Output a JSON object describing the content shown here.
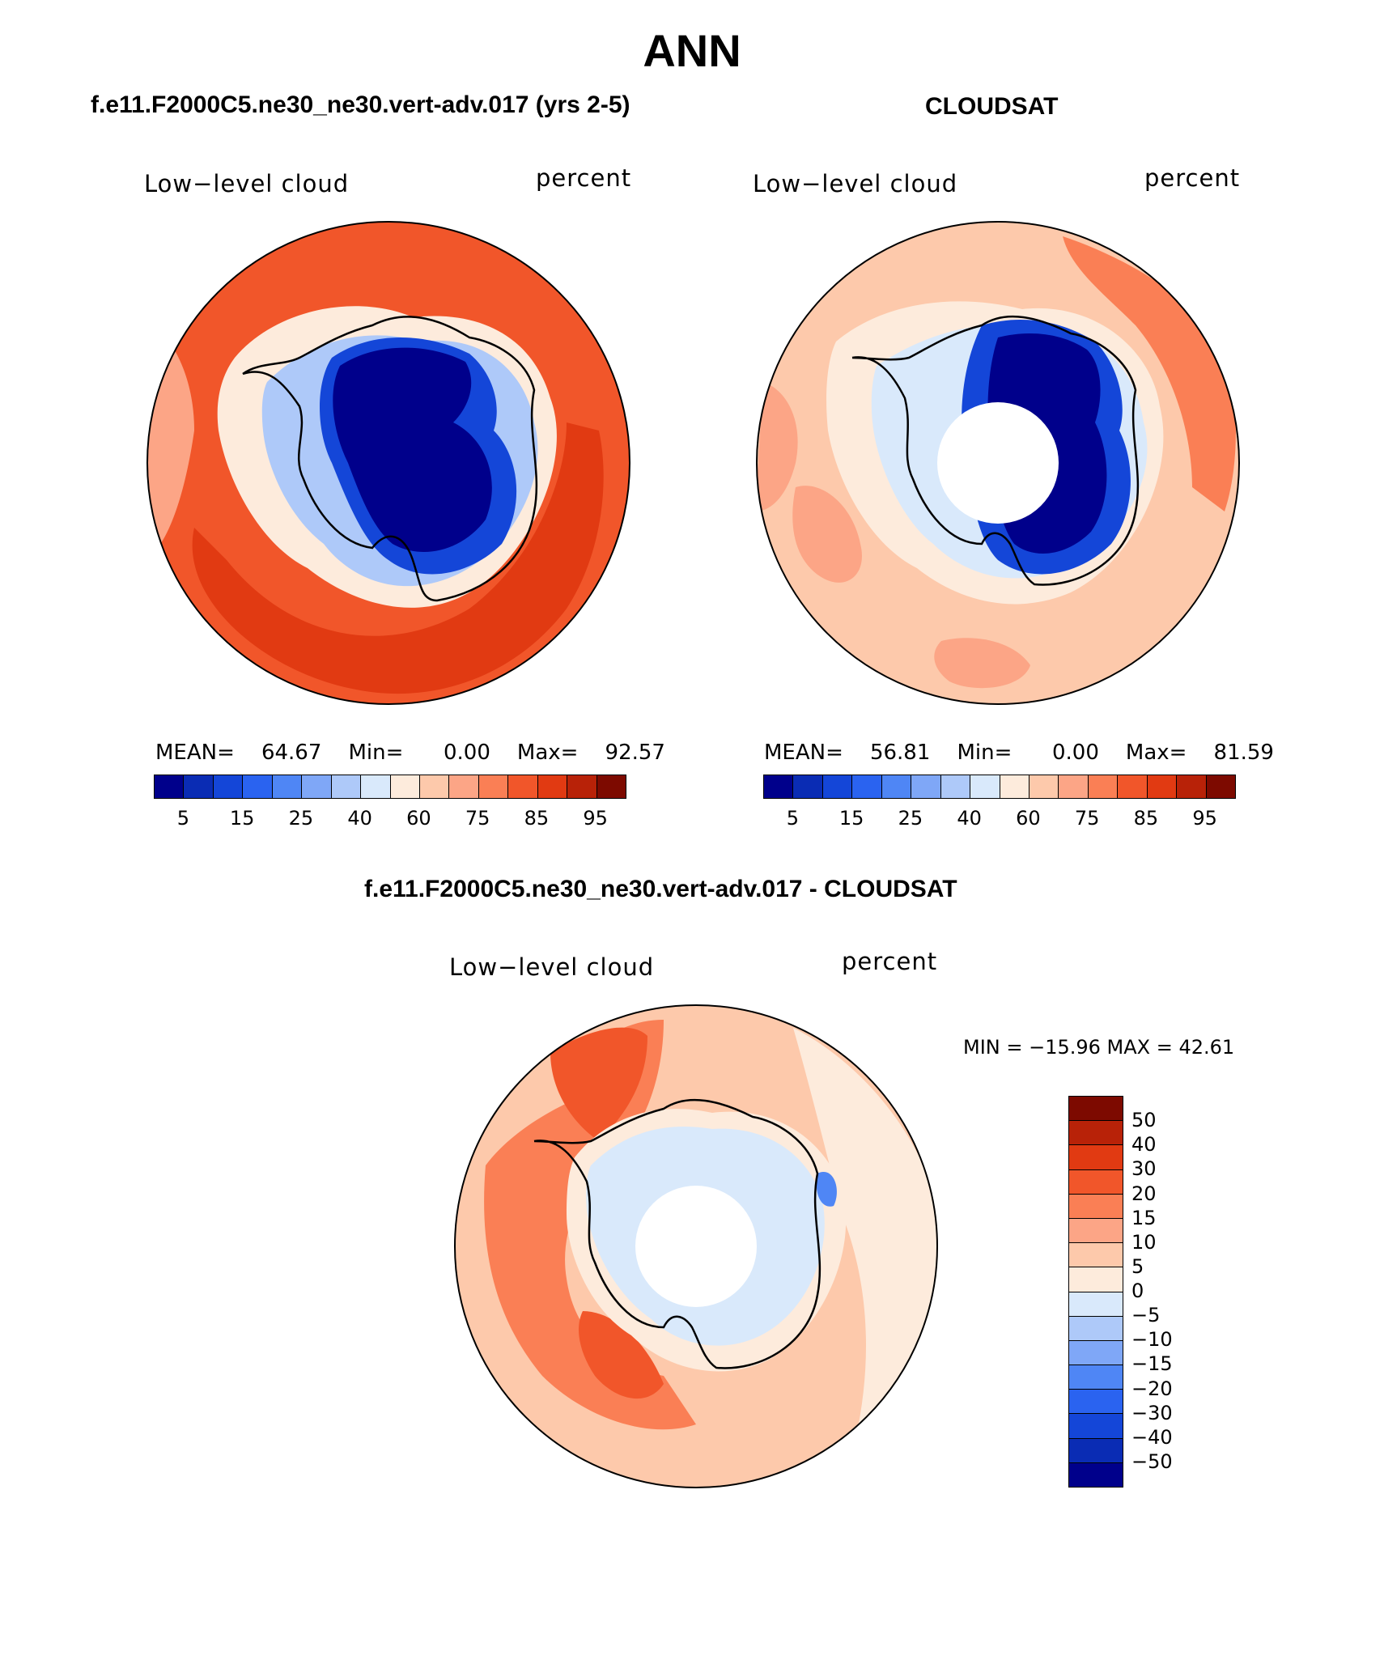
{
  "title": "ANN",
  "panels": [
    {
      "id": "model",
      "title": "f.e11.F2000C5.ne30_ne30.vert-adv.017 (yrs 2-5)",
      "left_label": "Low−level cloud",
      "right_label": "percent",
      "stats": {
        "mean_label": "MEAN=",
        "mean": "64.67",
        "min_label": "Min=",
        "min": "0.00",
        "max_label": "Max=",
        "max": "92.57"
      },
      "colorbar_ticks": [
        "5",
        "15",
        "25",
        "40",
        "60",
        "75",
        "85",
        "95"
      ],
      "colorbar_colors": [
        "#00008b",
        "#0a2cb4",
        "#1446d8",
        "#2a63f0",
        "#4f86f5",
        "#7fa7f7",
        "#aec9f9",
        "#d9e9fb",
        "#fdebdc",
        "#fdc9ab",
        "#fca586",
        "#fa7f55",
        "#f1562a",
        "#e13a12",
        "#b82208",
        "#7d0a00"
      ]
    },
    {
      "id": "obs",
      "title": "CLOUDSAT",
      "left_label": "Low−level cloud",
      "right_label": "percent",
      "stats": {
        "mean_label": "MEAN=",
        "mean": "56.81",
        "min_label": "Min=",
        "min": "0.00",
        "max_label": "Max=",
        "max": "81.59"
      },
      "colorbar_ticks": [
        "5",
        "15",
        "25",
        "40",
        "60",
        "75",
        "85",
        "95"
      ],
      "colorbar_colors": [
        "#00008b",
        "#0a2cb4",
        "#1446d8",
        "#2a63f0",
        "#4f86f5",
        "#7fa7f7",
        "#aec9f9",
        "#d9e9fb",
        "#fdebdc",
        "#fdc9ab",
        "#fca586",
        "#fa7f55",
        "#f1562a",
        "#e13a12",
        "#b82208",
        "#7d0a00"
      ]
    },
    {
      "id": "diff",
      "title": "f.e11.F2000C5.ne30_ne30.vert-adv.017 - CLOUDSAT",
      "left_label": "Low−level cloud",
      "right_label": "percent",
      "minmax": "MIN = −15.96 MAX =   42.61",
      "colorbar_ticks": [
        "50",
        "40",
        "30",
        "20",
        "15",
        "10",
        "5",
        "0",
        "−5",
        "−10",
        "−15",
        "−20",
        "−30",
        "−40",
        "−50"
      ],
      "colorbar_colors": [
        "#7d0a00",
        "#b82208",
        "#e13a12",
        "#f1562a",
        "#fa7f55",
        "#fca586",
        "#fdc9ab",
        "#fdebdc",
        "#d9e9fb",
        "#aec9f9",
        "#7fa7f7",
        "#4f86f5",
        "#2a63f0",
        "#1446d8",
        "#0a2cb4",
        "#00008b"
      ]
    }
  ],
  "map": {
    "projection": "south-polar-stereographic",
    "region": "Antarctica",
    "colors": {
      "ocean_high": "#f1562a",
      "ocean_mid": "#fca586",
      "ocean_light": "#fdc9ab",
      "ice_low": "#00008b",
      "coast": "#000000"
    }
  }
}
